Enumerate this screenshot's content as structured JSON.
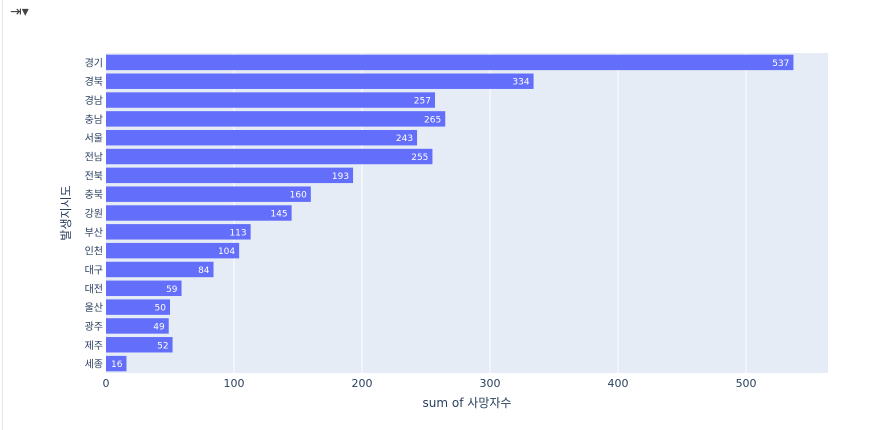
{
  "toolbar": {
    "icon": "toggle-panel-icon"
  },
  "chart_data": {
    "type": "bar",
    "orientation": "horizontal",
    "categories": [
      "경기",
      "경북",
      "경남",
      "충남",
      "서울",
      "전남",
      "전북",
      "충북",
      "강원",
      "부산",
      "인천",
      "대구",
      "대전",
      "울산",
      "광주",
      "제주",
      "세종"
    ],
    "values": [
      537,
      334,
      257,
      265,
      243,
      255,
      193,
      160,
      145,
      113,
      104,
      84,
      59,
      50,
      49,
      52,
      16
    ],
    "xlabel": "sum of 사망자수",
    "ylabel": "발생지시도",
    "xticks": [
      0,
      100,
      200,
      300,
      400,
      500
    ],
    "xlim": [
      0,
      564
    ],
    "grid": true,
    "data_labels": true,
    "colors": {
      "bar": "#636efa",
      "plot_bg": "#e5ecf6",
      "grid": "#ffffff"
    }
  }
}
